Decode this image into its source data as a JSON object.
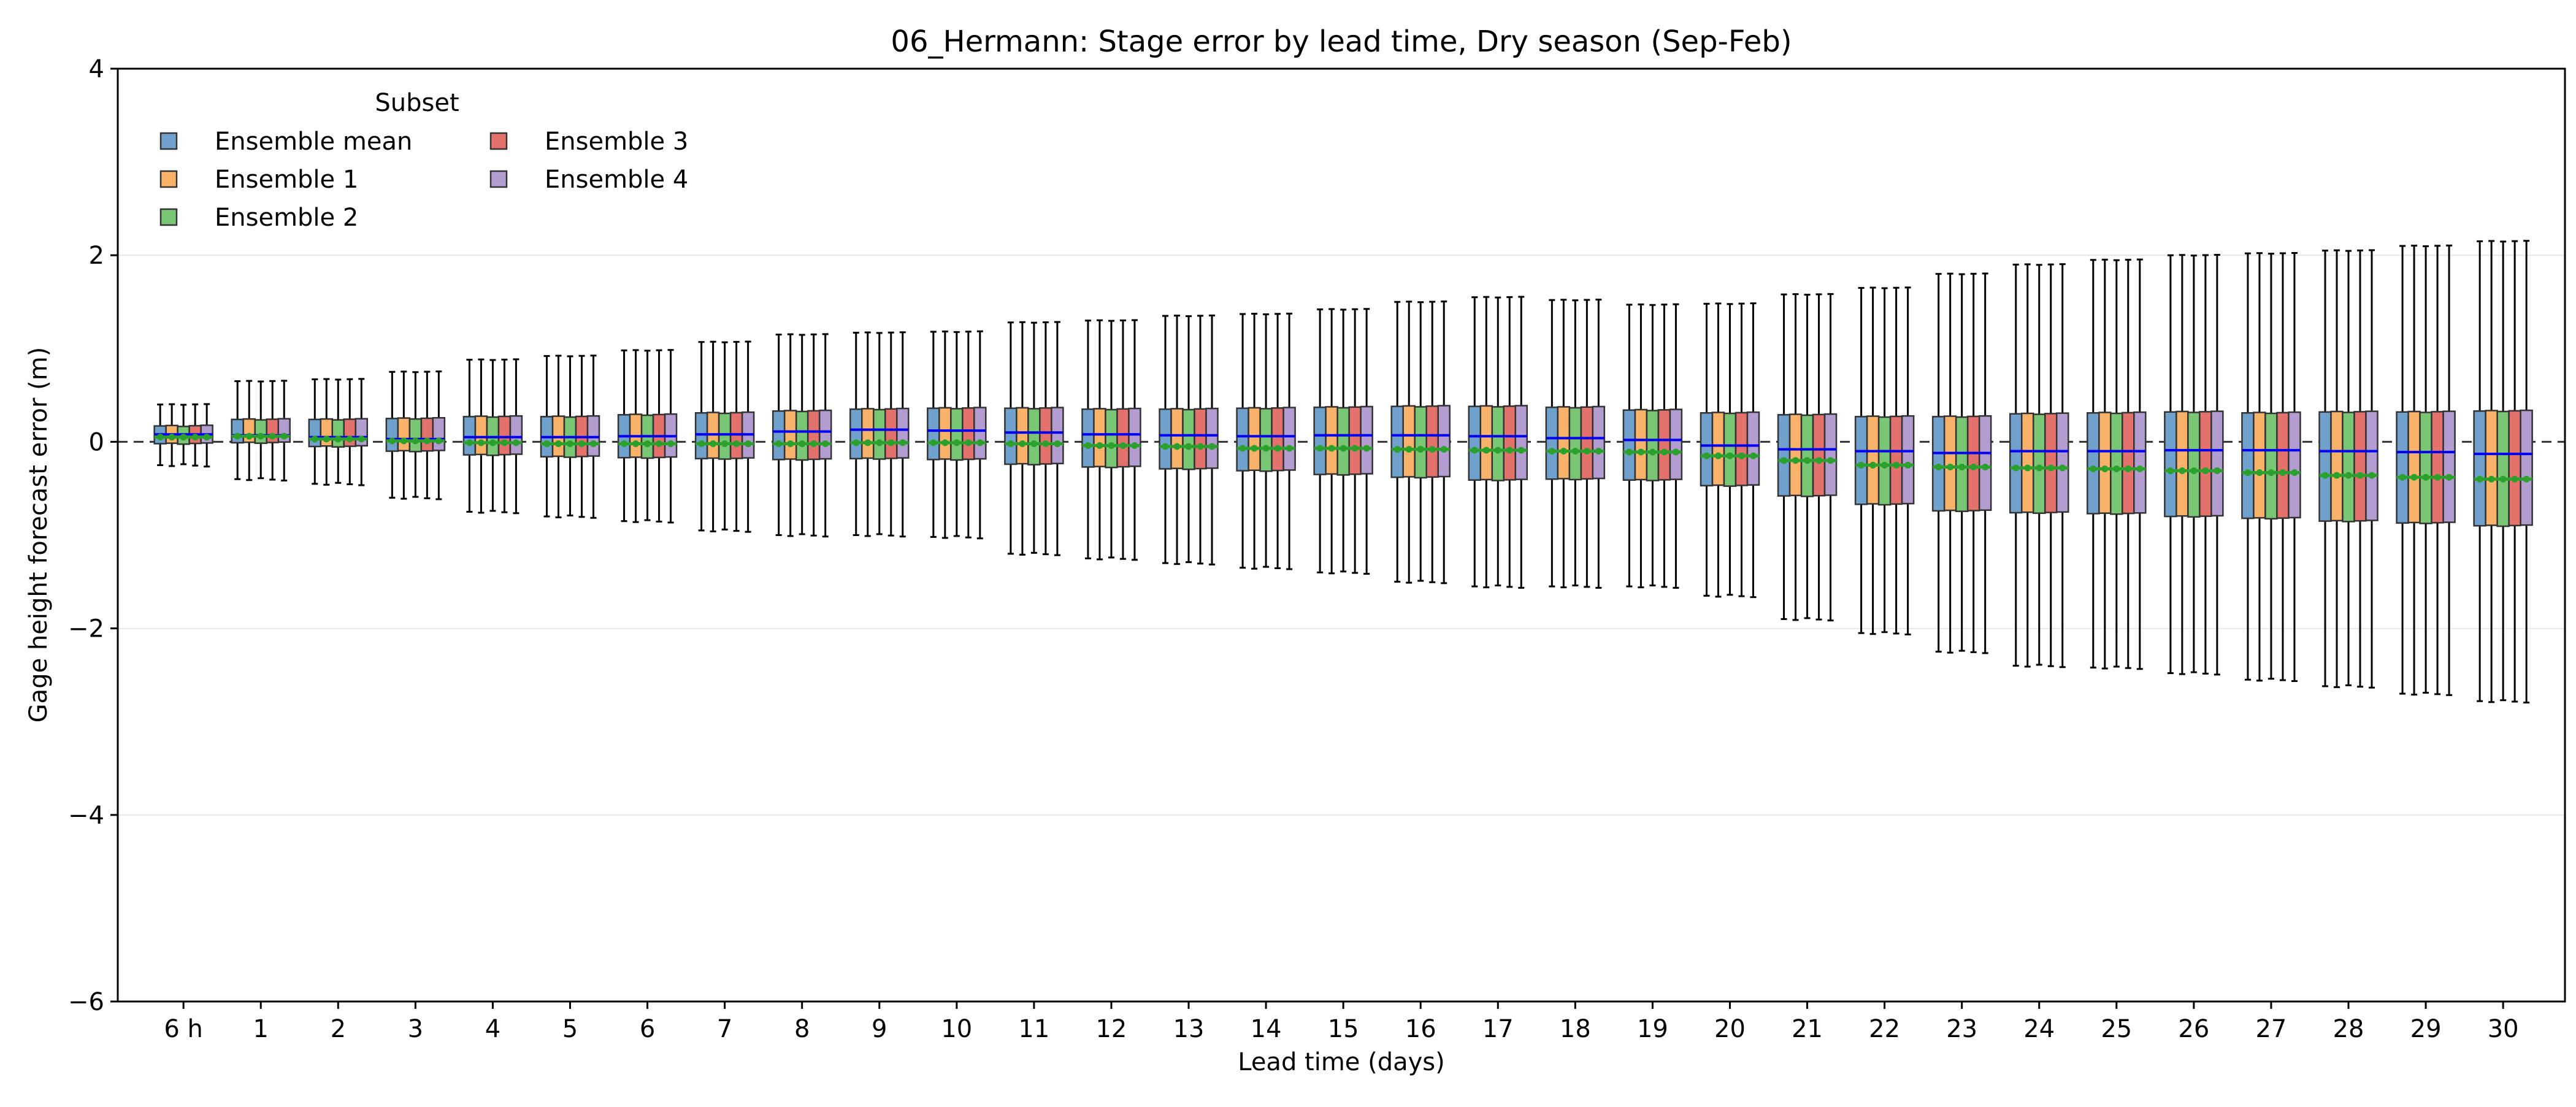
{
  "chart_data": {
    "type": "box",
    "title": "06_Hermann: Stage error by lead time, Dry season (Sep-Feb)",
    "xlabel": "Lead time (days)",
    "ylabel": "Gage height forecast error (m)",
    "ylim": [
      -6,
      4
    ],
    "yticks": [
      -6,
      -4,
      -2,
      0,
      2,
      4
    ],
    "ytick_labels": [
      "−6",
      "−4",
      "−2",
      "0",
      "2",
      "4"
    ],
    "grid": "horizontal",
    "reference_line": 0,
    "legend": {
      "title": "Subset",
      "placement": "top-left",
      "columns": 2
    },
    "categories": [
      "6 h",
      "1",
      "2",
      "3",
      "4",
      "5",
      "6",
      "7",
      "8",
      "9",
      "10",
      "11",
      "12",
      "13",
      "14",
      "15",
      "16",
      "17",
      "18",
      "19",
      "20",
      "21",
      "22",
      "23",
      "24",
      "25",
      "26",
      "27",
      "28",
      "29",
      "30"
    ],
    "series": [
      {
        "name": "Ensemble mean",
        "color": "#6fa1cc"
      },
      {
        "name": "Ensemble 1",
        "color": "#f8b26a"
      },
      {
        "name": "Ensemble 2",
        "color": "#79c674"
      },
      {
        "name": "Ensemble 3",
        "color": "#e2726b"
      },
      {
        "name": "Ensemble 4",
        "color": "#b29cd0"
      }
    ],
    "median_color": "#0000ee",
    "mean_marker_color": "#2ca02c",
    "q1": [
      -0.02,
      -0.01,
      -0.05,
      -0.1,
      -0.14,
      -0.16,
      -0.17,
      -0.18,
      -0.19,
      -0.18,
      -0.19,
      -0.24,
      -0.27,
      -0.29,
      -0.31,
      -0.35,
      -0.38,
      -0.41,
      -0.4,
      -0.41,
      -0.47,
      -0.58,
      -0.67,
      -0.74,
      -0.76,
      -0.77,
      -0.8,
      -0.82,
      -0.85,
      -0.87,
      -0.9
    ],
    "q3": [
      0.17,
      0.24,
      0.24,
      0.25,
      0.27,
      0.27,
      0.29,
      0.31,
      0.33,
      0.35,
      0.36,
      0.36,
      0.35,
      0.35,
      0.36,
      0.37,
      0.38,
      0.38,
      0.37,
      0.34,
      0.31,
      0.29,
      0.27,
      0.27,
      0.3,
      0.31,
      0.32,
      0.31,
      0.32,
      0.32,
      0.33
    ],
    "median": [
      0.08,
      0.07,
      0.05,
      0.03,
      0.05,
      0.05,
      0.06,
      0.08,
      0.11,
      0.13,
      0.12,
      0.1,
      0.08,
      0.07,
      0.06,
      0.07,
      0.07,
      0.06,
      0.04,
      0.02,
      -0.04,
      -0.08,
      -0.1,
      -0.12,
      -0.1,
      -0.1,
      -0.09,
      -0.09,
      -0.1,
      -0.11,
      -0.13
    ],
    "mean": [
      0.05,
      0.06,
      0.03,
      0.01,
      -0.01,
      -0.02,
      -0.02,
      -0.02,
      -0.02,
      -0.01,
      -0.01,
      -0.02,
      -0.04,
      -0.05,
      -0.07,
      -0.07,
      -0.08,
      -0.09,
      -0.1,
      -0.11,
      -0.15,
      -0.2,
      -0.25,
      -0.27,
      -0.28,
      -0.29,
      -0.31,
      -0.33,
      -0.36,
      -0.38,
      -0.4
    ],
    "whisker_low": [
      -0.25,
      -0.4,
      -0.45,
      -0.6,
      -0.75,
      -0.8,
      -0.85,
      -0.95,
      -1.0,
      -1.0,
      -1.02,
      -1.2,
      -1.25,
      -1.3,
      -1.35,
      -1.4,
      -1.5,
      -1.55,
      -1.55,
      -1.55,
      -1.65,
      -1.9,
      -2.05,
      -2.25,
      -2.4,
      -2.42,
      -2.48,
      -2.55,
      -2.62,
      -2.7,
      -2.78
    ],
    "whisker_high": [
      0.4,
      0.65,
      0.67,
      0.75,
      0.88,
      0.92,
      0.98,
      1.07,
      1.15,
      1.17,
      1.18,
      1.28,
      1.3,
      1.35,
      1.37,
      1.42,
      1.5,
      1.55,
      1.52,
      1.47,
      1.48,
      1.58,
      1.65,
      1.8,
      1.9,
      1.95,
      2.0,
      2.02,
      2.05,
      2.1,
      2.15
    ]
  }
}
